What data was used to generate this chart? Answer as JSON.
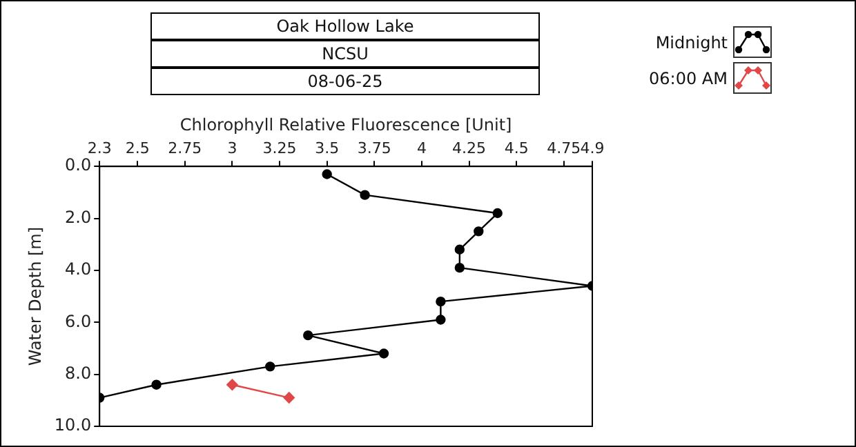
{
  "chart_data": {
    "type": "line",
    "title": "Oak Hollow Lake",
    "subtitle": "NCSU",
    "annotations": [
      "08-06-25"
    ],
    "xlabel": "Chlorophyll Relative Fluorescence [Unit]",
    "ylabel": "Water Depth [m]",
    "xlim": [
      2.3,
      4.9
    ],
    "xticks": [
      2.3,
      2.5,
      2.75,
      3,
      3.25,
      3.5,
      3.75,
      4,
      4.25,
      4.5,
      4.75,
      4.9
    ],
    "ylim": [
      10,
      0
    ],
    "yticks": [
      {
        "value": 0,
        "label": "0.0"
      },
      {
        "value": 2,
        "label": "2.0"
      },
      {
        "value": 4,
        "label": "4.0"
      },
      {
        "value": 6,
        "label": "6.0"
      },
      {
        "value": 8,
        "label": "8.0"
      },
      {
        "value": 10,
        "label": "10.0"
      }
    ],
    "grid": false,
    "legend": "top right",
    "marker": "circle",
    "line_style": "solid",
    "series": [
      {
        "name": "Midnight",
        "color": "#000000",
        "x": [
          3.5,
          3.7,
          4.4,
          4.3,
          4.2,
          4.2,
          4.9,
          4.1,
          4.1,
          3.4,
          3.8,
          3.2,
          2.6,
          2.3
        ],
        "values": [
          0.3,
          1.1,
          1.8,
          2.5,
          3.2,
          3.9,
          4.6,
          5.2,
          5.9,
          6.5,
          7.2,
          7.7,
          8.4,
          8.9
        ]
      },
      {
        "name": "06:00 AM",
        "color": "#e04848",
        "marker": "diamond",
        "x": [
          3.0,
          3.3
        ],
        "values": [
          8.4,
          8.9
        ]
      }
    ]
  }
}
